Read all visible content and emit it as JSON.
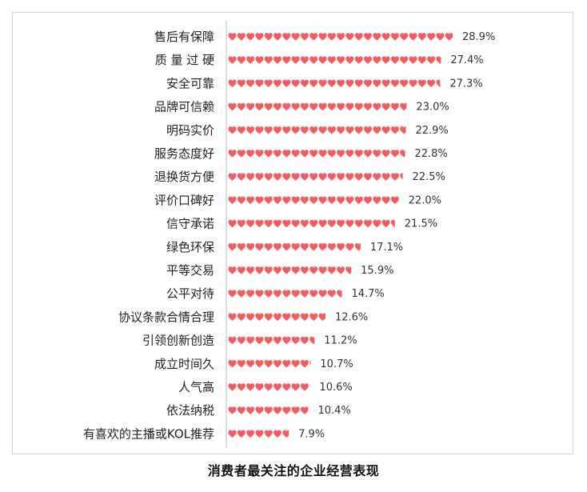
{
  "caption": "消费者最关注的企业经营表现",
  "colors": {
    "heart": "#ee5d63",
    "heart_light": "#f7b1b4",
    "axis": "#bdbdbd",
    "frame": "#d4d4d4"
  },
  "chart_data": {
    "type": "bar",
    "orientation": "horizontal",
    "marker": "heart-icon",
    "title": "",
    "xlabel": "",
    "ylabel": "",
    "xlim": [
      0,
      30
    ],
    "grid": false,
    "legend": "none",
    "categories": [
      "售后有保障",
      "质 量 过 硬",
      "安全可靠",
      "品牌可信赖",
      "明码实价",
      "服务态度好",
      "退换货方便",
      "评价口碑好",
      "信守承诺",
      "绿色环保",
      "平等交易",
      "公平对待",
      "协议条款合情合理",
      "引领创新创造",
      "成立时间久",
      "人气高",
      "依法纳税",
      "有喜欢的主播或KOL推荐"
    ],
    "values": [
      28.9,
      27.4,
      27.3,
      23.0,
      22.9,
      22.8,
      22.5,
      22.0,
      21.5,
      17.1,
      15.9,
      14.7,
      12.6,
      11.2,
      10.7,
      10.6,
      10.4,
      7.9
    ],
    "value_labels": [
      "28.9%",
      "27.4%",
      "27.3%",
      "23.0%",
      "22.9%",
      "22.8%",
      "22.5%",
      "22.0%",
      "21.5%",
      "17.1%",
      "15.9%",
      "14.7%",
      "12.6%",
      "11.2%",
      "10.7%",
      "10.6%",
      "10.4%",
      "7.9%"
    ]
  }
}
